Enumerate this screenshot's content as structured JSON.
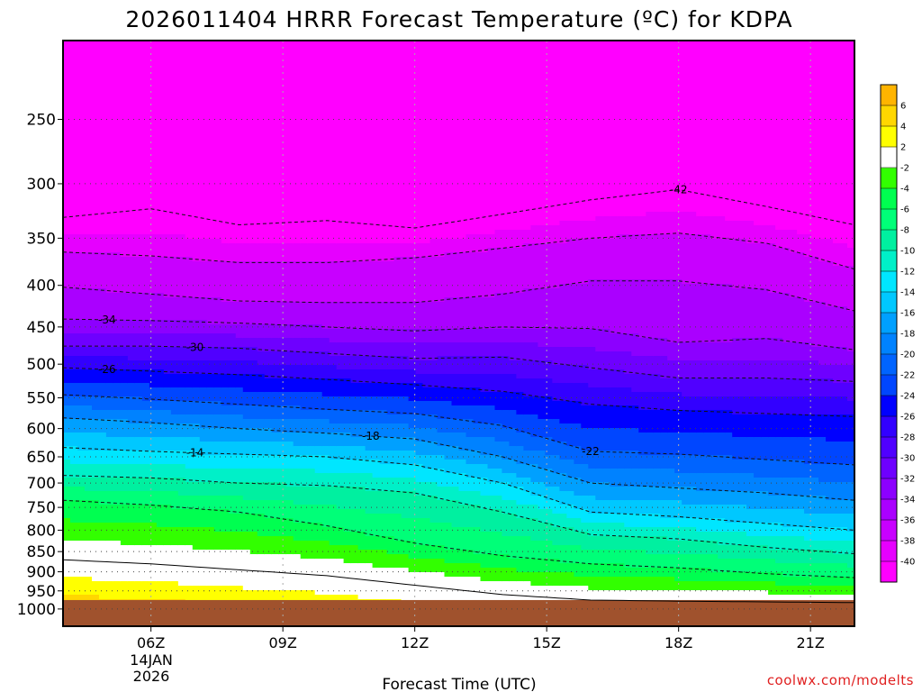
{
  "chart_data": {
    "type": "heatmap",
    "title": "2026011404 HRRR Forecast Temperature (ºC) for KDPA",
    "xlabel": "Forecast Time (UTC)",
    "ylabel": "",
    "x_ticks": [
      {
        "hour": 6,
        "label": "06Z"
      },
      {
        "hour": 9,
        "label": "09Z"
      },
      {
        "hour": 12,
        "label": "12Z"
      },
      {
        "hour": 15,
        "label": "15Z"
      },
      {
        "hour": 18,
        "label": "18Z"
      },
      {
        "hour": 21,
        "label": "21Z"
      }
    ],
    "x_date_label": [
      "14JAN",
      "2026"
    ],
    "xlim_hours": [
      4,
      22
    ],
    "y_scale": "log-pressure (hPa)",
    "ylim_hpa": [
      1050,
      200
    ],
    "y_ticks": [
      250,
      300,
      350,
      400,
      450,
      500,
      550,
      600,
      650,
      700,
      750,
      800,
      850,
      900,
      950,
      1000
    ],
    "y_tick_labels": [
      "250",
      "300",
      "350",
      "400",
      "450",
      "500",
      "550",
      "600",
      "650",
      "700",
      "750",
      "800",
      "850",
      "900",
      "950",
      "1000"
    ],
    "grid": true,
    "colorbar": {
      "placement": "right",
      "levels": [
        -40,
        -38,
        -36,
        -34,
        -32,
        -30,
        -28,
        -26,
        -24,
        -22,
        -20,
        -18,
        -16,
        -14,
        -12,
        -10,
        -8,
        -6,
        -4,
        -2,
        2,
        4,
        6
      ],
      "labels": [
        "-40",
        "-38",
        "-36",
        "-34",
        "-32",
        "-30",
        "-28",
        "-26",
        "-24",
        "-22",
        "-20",
        "-18",
        "-16",
        "-14",
        "-12",
        "-10",
        "-8",
        "-6",
        "-4",
        "-2",
        "2",
        "4",
        "6"
      ],
      "colors": [
        "#ff00ff",
        "#e600ff",
        "#c800ff",
        "#aa00ff",
        "#8c00ff",
        "#6e00ff",
        "#5000ff",
        "#3200ff",
        "#0000ff",
        "#0046ff",
        "#0064ff",
        "#0082ff",
        "#00a0ff",
        "#00c8ff",
        "#00e6ff",
        "#00f0c8",
        "#00f0a0",
        "#00ff78",
        "#00ff50",
        "#32ff00",
        "#ffffff",
        "#ffff00",
        "#ffd700",
        "#ffb400"
      ]
    },
    "surface_color": "#a0522d",
    "surface_top_hpa": 975,
    "isotherms": [
      {
        "temp": -42,
        "label": "-42",
        "label_hour": 18,
        "points": [
          [
            4,
            330
          ],
          [
            6,
            322
          ],
          [
            8,
            337
          ],
          [
            10,
            333
          ],
          [
            12,
            340
          ],
          [
            14,
            327
          ],
          [
            16,
            314
          ],
          [
            18,
            305
          ],
          [
            20,
            320
          ],
          [
            22,
            337
          ]
        ]
      },
      {
        "temp": -38,
        "label": "",
        "label_hour": null,
        "points": [
          [
            4,
            364
          ],
          [
            6,
            368
          ],
          [
            8,
            375
          ],
          [
            10,
            375
          ],
          [
            12,
            370
          ],
          [
            14,
            360
          ],
          [
            16,
            350
          ],
          [
            18,
            345
          ],
          [
            20,
            355
          ],
          [
            22,
            382
          ]
        ]
      },
      {
        "temp": -36,
        "label": "",
        "label_hour": null,
        "points": [
          [
            4,
            402
          ],
          [
            6,
            410
          ],
          [
            8,
            418
          ],
          [
            10,
            420
          ],
          [
            12,
            420
          ],
          [
            14,
            410
          ],
          [
            16,
            395
          ],
          [
            18,
            395
          ],
          [
            20,
            405
          ],
          [
            22,
            430
          ]
        ]
      },
      {
        "temp": -34,
        "label": "-34",
        "label_hour": 5,
        "points": [
          [
            4,
            440
          ],
          [
            6,
            442
          ],
          [
            8,
            445
          ],
          [
            10,
            450
          ],
          [
            12,
            455
          ],
          [
            14,
            450
          ],
          [
            16,
            452
          ],
          [
            18,
            470
          ],
          [
            20,
            465
          ],
          [
            22,
            480
          ]
        ]
      },
      {
        "temp": -30,
        "label": "-30",
        "label_hour": 7,
        "points": [
          [
            4,
            475
          ],
          [
            6,
            475
          ],
          [
            8,
            478
          ],
          [
            10,
            485
          ],
          [
            12,
            492
          ],
          [
            14,
            490
          ],
          [
            16,
            505
          ],
          [
            18,
            520
          ],
          [
            20,
            520
          ],
          [
            22,
            525
          ]
        ]
      },
      {
        "temp": -26,
        "label": "-26",
        "label_hour": 5,
        "points": [
          [
            4,
            505
          ],
          [
            6,
            510
          ],
          [
            8,
            515
          ],
          [
            10,
            522
          ],
          [
            12,
            530
          ],
          [
            14,
            540
          ],
          [
            16,
            560
          ],
          [
            18,
            570
          ],
          [
            20,
            575
          ],
          [
            22,
            580
          ]
        ]
      },
      {
        "temp": -22,
        "label": "-22",
        "label_hour": 16,
        "points": [
          [
            4,
            545
          ],
          [
            6,
            552
          ],
          [
            8,
            560
          ],
          [
            10,
            568
          ],
          [
            12,
            575
          ],
          [
            14,
            595
          ],
          [
            16,
            640
          ],
          [
            18,
            645
          ],
          [
            20,
            655
          ],
          [
            22,
            665
          ]
        ]
      },
      {
        "temp": -18,
        "label": "-18",
        "label_hour": 11,
        "points": [
          [
            4,
            582
          ],
          [
            6,
            590
          ],
          [
            8,
            600
          ],
          [
            10,
            608
          ],
          [
            12,
            618
          ],
          [
            14,
            650
          ],
          [
            16,
            700
          ],
          [
            18,
            710
          ],
          [
            20,
            720
          ],
          [
            22,
            735
          ]
        ]
      },
      {
        "temp": -14,
        "label": "-14",
        "label_hour": 7,
        "points": [
          [
            4,
            633
          ],
          [
            6,
            640
          ],
          [
            8,
            645
          ],
          [
            10,
            650
          ],
          [
            12,
            665
          ],
          [
            14,
            700
          ],
          [
            16,
            760
          ],
          [
            18,
            770
          ],
          [
            20,
            785
          ],
          [
            22,
            800
          ]
        ]
      },
      {
        "temp": -10,
        "label": "",
        "label_hour": null,
        "points": [
          [
            4,
            685
          ],
          [
            6,
            690
          ],
          [
            8,
            700
          ],
          [
            10,
            705
          ],
          [
            12,
            720
          ],
          [
            14,
            760
          ],
          [
            16,
            810
          ],
          [
            18,
            820
          ],
          [
            20,
            840
          ],
          [
            22,
            855
          ]
        ]
      },
      {
        "temp": -6,
        "label": "",
        "label_hour": null,
        "points": [
          [
            4,
            735
          ],
          [
            6,
            745
          ],
          [
            8,
            760
          ],
          [
            10,
            790
          ],
          [
            12,
            830
          ],
          [
            14,
            860
          ],
          [
            16,
            880
          ],
          [
            18,
            890
          ],
          [
            20,
            905
          ],
          [
            22,
            915
          ]
        ]
      },
      {
        "temp": 0,
        "label": "",
        "label_hour": null,
        "points": [
          [
            4,
            870
          ],
          [
            6,
            880
          ],
          [
            8,
            895
          ],
          [
            10,
            910
          ],
          [
            12,
            935
          ],
          [
            14,
            960
          ],
          [
            16,
            975
          ],
          [
            18,
            978
          ],
          [
            20,
            980
          ],
          [
            22,
            982
          ]
        ]
      }
    ]
  },
  "credit": "coolwx.com/modelts"
}
